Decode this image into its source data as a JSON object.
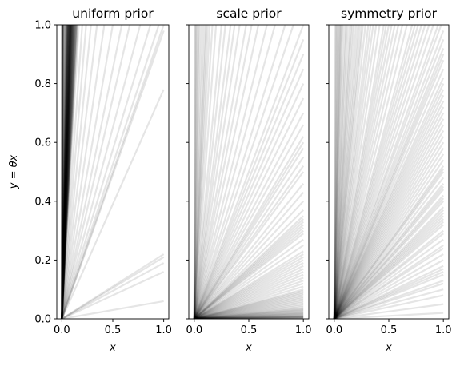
{
  "chart_data": [
    {
      "type": "line",
      "title": "uniform prior",
      "xlabel": "x",
      "ylabel": "y = θx",
      "xlim": [
        -0.05,
        1.05
      ],
      "ylim": [
        0.0,
        1.0
      ],
      "xticks": [
        0.0,
        0.5,
        1.0
      ],
      "xtick_labels": [
        "0.0",
        "0.5",
        "1.0"
      ],
      "yticks": [
        0.0,
        0.2,
        0.4,
        0.6,
        0.8,
        1.0
      ],
      "ytick_labels": [
        "0.0",
        "0.2",
        "0.4",
        "0.6",
        "0.8",
        "1.0"
      ],
      "line_color": "#000000",
      "line_alpha": 0.1,
      "slopes": [
        0.06,
        0.16,
        0.19,
        0.21,
        0.22,
        0.78,
        0.98,
        1.0,
        1.05,
        1.15,
        1.3,
        1.5,
        1.7,
        2.0,
        2.4,
        2.9,
        3.5,
        4.2,
        5.0,
        6.0,
        6.5,
        7.0,
        7.5,
        8.0,
        8.5,
        9.0,
        9.5,
        10.0,
        10.5,
        11.0,
        11.5,
        12.0,
        12.5,
        13.0,
        14.0,
        15.0,
        16.0,
        17.0,
        18.0,
        20.0,
        6.8,
        7.2,
        7.8,
        8.2,
        8.8,
        9.2,
        9.8,
        10.2,
        10.8,
        11.2,
        11.8,
        12.2,
        12.8,
        13.5,
        14.5,
        15.5,
        16.5,
        17.5,
        19.0,
        22.0,
        7.1,
        7.6,
        8.1,
        8.6,
        9.1,
        9.6,
        10.1,
        10.6,
        11.1,
        11.6,
        12.1,
        12.6,
        13.2,
        14.2,
        15.2,
        16.2,
        18.5,
        21.0,
        24.0,
        28.0,
        6.6,
        7.3,
        7.9,
        8.4,
        8.9,
        9.4,
        9.9,
        10.4,
        10.9,
        11.4,
        11.9,
        12.4,
        12.9,
        13.8,
        14.8,
        15.8,
        17.2,
        19.5,
        23.0,
        26.0,
        30.0,
        35.0,
        40.0,
        50.0,
        60.0,
        70.0,
        80.0,
        90.0,
        100.0,
        120.0,
        150.0,
        180.0,
        220.0,
        260.0,
        300.0,
        350.0,
        400.0,
        500.0,
        600.0,
        800.0
      ]
    },
    {
      "type": "line",
      "title": "scale prior",
      "xlabel": "x",
      "xlim": [
        -0.05,
        1.05
      ],
      "ylim": [
        0.0,
        1.0
      ],
      "xticks": [
        0.0,
        0.5,
        1.0
      ],
      "xtick_labels": [
        "0.0",
        "0.5",
        "1.0"
      ],
      "yticks": [
        0.0,
        0.2,
        0.4,
        0.6,
        0.8,
        1.0
      ],
      "line_color": "#000000",
      "line_alpha": 0.1,
      "slopes": [
        0.001,
        0.002,
        0.003,
        0.004,
        0.005,
        0.006,
        0.007,
        0.008,
        0.009,
        0.01,
        0.012,
        0.014,
        0.016,
        0.018,
        0.02,
        0.022,
        0.025,
        0.028,
        0.03,
        0.033,
        0.036,
        0.04,
        0.045,
        0.05,
        0.055,
        0.06,
        0.065,
        0.07,
        0.075,
        0.08,
        0.085,
        0.09,
        0.095,
        0.1,
        0.11,
        0.12,
        0.13,
        0.14,
        0.15,
        0.16,
        0.17,
        0.18,
        0.19,
        0.2,
        0.21,
        0.22,
        0.23,
        0.25,
        0.27,
        0.29,
        0.3,
        0.31,
        0.32,
        0.33,
        0.34,
        0.35,
        0.37,
        0.4,
        0.43,
        0.46,
        0.5,
        0.52,
        0.55,
        0.58,
        0.6,
        0.62,
        0.66,
        0.7,
        0.75,
        0.8,
        0.85,
        0.9,
        0.95,
        1.0,
        1.1,
        1.2,
        1.35,
        1.5,
        1.7,
        1.9,
        2.1,
        2.4,
        2.7,
        3.0,
        3.5,
        4.0,
        5.0,
        6.0,
        7.0,
        8.0,
        9.0,
        10.0,
        12.0,
        15.0,
        20.0,
        25.0,
        35.0,
        50.0,
        80.0,
        150.0
      ]
    },
    {
      "type": "line",
      "title": "symmetry prior",
      "xlabel": "x",
      "xlim": [
        -0.05,
        1.05
      ],
      "ylim": [
        0.0,
        1.0
      ],
      "xticks": [
        0.0,
        0.5,
        1.0
      ],
      "xtick_labels": [
        "0.0",
        "0.5",
        "1.0"
      ],
      "yticks": [
        0.0,
        0.2,
        0.4,
        0.6,
        0.8,
        1.0
      ],
      "line_color": "#000000",
      "line_alpha": 0.1,
      "slopes": [
        0.02,
        0.05,
        0.08,
        0.1,
        0.12,
        0.13,
        0.15,
        0.16,
        0.17,
        0.18,
        0.2,
        0.22,
        0.24,
        0.25,
        0.27,
        0.29,
        0.3,
        0.32,
        0.33,
        0.34,
        0.35,
        0.36,
        0.37,
        0.38,
        0.4,
        0.41,
        0.42,
        0.44,
        0.45,
        0.46,
        0.48,
        0.5,
        0.51,
        0.52,
        0.54,
        0.56,
        0.58,
        0.6,
        0.62,
        0.64,
        0.66,
        0.68,
        0.7,
        0.72,
        0.74,
        0.76,
        0.78,
        0.8,
        0.82,
        0.85,
        0.88,
        0.9,
        0.92,
        0.95,
        0.98,
        1.02,
        1.05,
        1.1,
        1.15,
        1.2,
        1.25,
        1.3,
        1.35,
        1.4,
        1.5,
        1.6,
        1.7,
        1.8,
        1.9,
        2.0,
        2.1,
        2.2,
        2.4,
        2.6,
        2.8,
        3.0,
        3.2,
        3.5,
        3.8,
        4.0,
        4.3,
        4.6,
        5.0,
        5.5,
        6.0,
        6.5,
        7.0,
        8.0,
        9.0,
        10.0,
        12.0,
        14.0,
        16.0,
        18.0,
        20.0,
        25.0,
        30.0,
        40.0,
        60.0,
        100.0
      ]
    }
  ]
}
